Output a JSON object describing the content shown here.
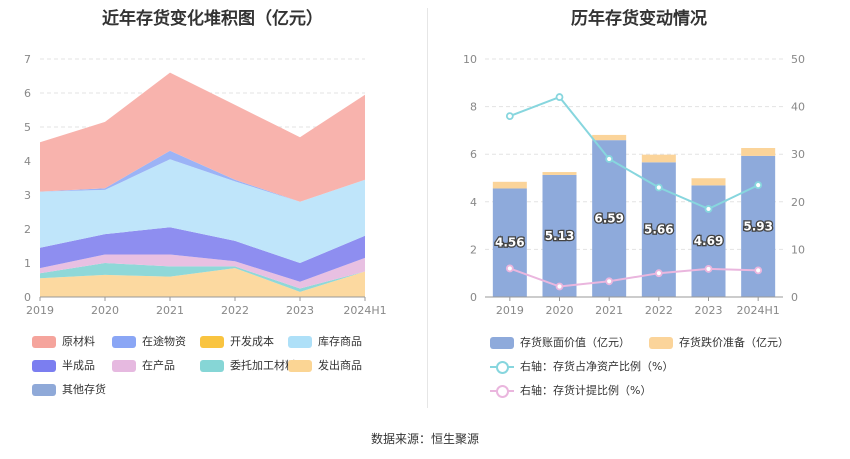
{
  "left_chart": {
    "title": "近年存货变化堆积图（亿元）",
    "chart_data": {
      "type": "area",
      "stacked": true,
      "x": [
        "2019",
        "2020",
        "2021",
        "2022",
        "2023",
        "2024H1"
      ],
      "ylim": [
        0,
        7
      ],
      "yticks": [
        0,
        1,
        2,
        3,
        4,
        5,
        6,
        7
      ],
      "grid": true,
      "legend_position": "bottom",
      "series": [
        {
          "name": "发出商品",
          "color": "#fcd9a0",
          "values": [
            0.55,
            0.65,
            0.6,
            0.85,
            0.15,
            0.75
          ]
        },
        {
          "name": "委托加工材料",
          "color": "#8fd8d8",
          "values": [
            0.15,
            0.35,
            0.3,
            0.05,
            0.1,
            0.0
          ]
        },
        {
          "name": "在产品",
          "color": "#e8c0e2",
          "values": [
            0.15,
            0.25,
            0.35,
            0.15,
            0.2,
            0.4
          ]
        },
        {
          "name": "半成品",
          "color": "#8e8ef0",
          "values": [
            0.6,
            0.6,
            0.8,
            0.6,
            0.55,
            0.65
          ]
        },
        {
          "name": "库存商品",
          "color": "#bfe5fa",
          "values": [
            1.65,
            1.3,
            2.0,
            1.75,
            1.8,
            1.65
          ]
        },
        {
          "name": "开发成本",
          "color": "#f9c440",
          "values": [
            0,
            0,
            0,
            0,
            0,
            0
          ]
        },
        {
          "name": "在途物资",
          "color": "#9bb3f6",
          "values": [
            0.0,
            0.05,
            0.25,
            0.05,
            0.0,
            0.0
          ]
        },
        {
          "name": "原材料",
          "color": "#f8b3ad",
          "values": [
            1.45,
            1.95,
            2.3,
            2.2,
            1.9,
            2.5
          ]
        },
        {
          "name": "其他存货",
          "color": "#8fa9d8",
          "values": [
            0,
            0,
            0,
            0,
            0,
            0
          ]
        }
      ]
    },
    "legend": [
      {
        "name": "原材料",
        "color": "#f5a49c"
      },
      {
        "name": "在途物资",
        "color": "#8aa6f5"
      },
      {
        "name": "开发成本",
        "color": "#f9c440"
      },
      {
        "name": "库存商品",
        "color": "#aee0f8"
      },
      {
        "name": "半成品",
        "color": "#7b7ef0"
      },
      {
        "name": "在产品",
        "color": "#e6b9e0"
      },
      {
        "name": "委托加工材料",
        "color": "#86d6d6"
      },
      {
        "name": "发出商品",
        "color": "#fbd594"
      },
      {
        "name": "其他存货",
        "color": "#8fa9d8"
      }
    ]
  },
  "right_chart": {
    "title": "历年存货变动情况",
    "chart_data": {
      "type": "bar",
      "stacked": true,
      "categories": [
        "2019",
        "2020",
        "2021",
        "2022",
        "2023",
        "2024H1"
      ],
      "ylim": [
        0,
        10
      ],
      "yticks": [
        0,
        2,
        4,
        6,
        8,
        10
      ],
      "y2lim": [
        0,
        50
      ],
      "y2ticks": [
        0,
        10,
        20,
        30,
        40,
        50
      ],
      "grid": true,
      "legend_position": "bottom",
      "bar_series": [
        {
          "name": "存货账面价值（亿元）",
          "color": "#8eaadb",
          "values": [
            4.56,
            5.13,
            6.59,
            5.66,
            4.69,
            5.93
          ],
          "labels": [
            "4.56",
            "5.13",
            "6.59",
            "5.66",
            "4.69",
            "5.93"
          ]
        },
        {
          "name": "存货跌价准备（亿元）",
          "color": "#fbd49a",
          "values": [
            0.28,
            0.12,
            0.22,
            0.32,
            0.3,
            0.33
          ]
        }
      ],
      "line_series": [
        {
          "name": "右轴：存货占净资产比例（%）",
          "color": "#87d6de",
          "axis": "right",
          "values": [
            38.0,
            42.0,
            29.0,
            23.0,
            18.5,
            23.5
          ]
        },
        {
          "name": "右轴：存货计提比例（%）",
          "color": "#eab6de",
          "axis": "right",
          "values": [
            6.0,
            2.2,
            3.3,
            5.0,
            5.9,
            5.6
          ]
        }
      ]
    }
  },
  "footer": {
    "source": "数据来源：恒生聚源"
  }
}
